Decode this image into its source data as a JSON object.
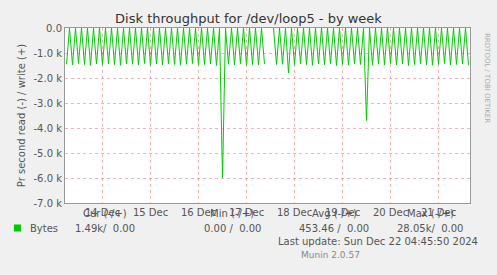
{
  "chart_data": {
    "type": "line",
    "title": "Disk throughput for /dev/loop5 - by week",
    "y_label": "Pr second read (-) / write (+)",
    "categories": [
      null,
      null,
      null,
      null,
      null,
      null,
      null,
      null,
      null,
      null,
      null,
      null,
      "14 Dec",
      null,
      null,
      null,
      null,
      null,
      null,
      null,
      null,
      null,
      null,
      null,
      null,
      null,
      null,
      null,
      "15 Dec",
      null,
      null,
      null,
      null,
      null,
      null,
      null,
      null,
      null,
      null,
      null,
      null,
      null,
      null,
      null,
      "16 Dec",
      null,
      null,
      null,
      null,
      null,
      null,
      null,
      null,
      null,
      null,
      null,
      null,
      null,
      null,
      null,
      "17 Dec",
      null,
      null,
      null,
      null,
      null,
      null,
      null,
      null,
      null,
      null,
      null,
      null,
      null,
      null,
      null,
      "18 Dec",
      null,
      null,
      null,
      null,
      null,
      null,
      null,
      null,
      null,
      null,
      null,
      null,
      null,
      null,
      null,
      "19 Dec",
      null,
      null,
      null,
      null,
      null,
      null,
      null,
      null,
      null,
      null,
      null,
      null,
      null,
      null,
      null,
      "20 Dec",
      null,
      null,
      null,
      null,
      null,
      null,
      null,
      null,
      null,
      null,
      null,
      null,
      null,
      null,
      null,
      "21 Dec",
      null,
      null,
      null,
      null,
      null,
      null,
      null,
      null,
      null,
      null
    ],
    "series": [
      {
        "name": "Bytes",
        "color": "#00cc00",
        "values": [
          -1450,
          0,
          -1480,
          0,
          -1420,
          0,
          -1460,
          0,
          -1500,
          0,
          -1440,
          0,
          -1470,
          0,
          -1430,
          0,
          -1460,
          0,
          -1490,
          0,
          -1430,
          0,
          -1450,
          0,
          -1480,
          0,
          -1420,
          0,
          -1500,
          0,
          -1440,
          0,
          -1470,
          0,
          -1430,
          0,
          -1460,
          0,
          -1490,
          0,
          -1450,
          0,
          -1420,
          0,
          -1480,
          0,
          -1460,
          0,
          -1440,
          0,
          -1500,
          0,
          -6000,
          0,
          -1450,
          0,
          -1470,
          0,
          -1430,
          0,
          -1490,
          0,
          -1460,
          0,
          -1480,
          0,
          -1440,
          null,
          null,
          0,
          -1460,
          0,
          -1450,
          0,
          -1800,
          0,
          -1470,
          0,
          -1430,
          0,
          -1460,
          0,
          -1490,
          0,
          -1440,
          0,
          -1470,
          0,
          -1420,
          0,
          -1500,
          0,
          -1450,
          0,
          -1480,
          0,
          -1430,
          0,
          -1460,
          0,
          -3700,
          0,
          -1490,
          0,
          -1450,
          0,
          -1470,
          0,
          -1420,
          0,
          -1480,
          0,
          -1440,
          0,
          -1500,
          0,
          -1460,
          0,
          -1430,
          0,
          -1470,
          0,
          -1490,
          0,
          -1450,
          0,
          -1420,
          0,
          -1480,
          0,
          -1460,
          0,
          -1440,
          0,
          -1490
        ]
      }
    ],
    "ylim": [
      -7000,
      0
    ],
    "yticks": [
      {
        "value": 0,
        "label": "0.0"
      },
      {
        "value": -1000,
        "label": "-1.0 k"
      },
      {
        "value": -2000,
        "label": "-2.0 k"
      },
      {
        "value": -3000,
        "label": "-3.0 k"
      },
      {
        "value": -4000,
        "label": "-4.0 k"
      },
      {
        "value": -5000,
        "label": "-5.0 k"
      },
      {
        "value": -6000,
        "label": "-6.0 k"
      },
      {
        "value": -7000,
        "label": "-7.0 k"
      }
    ],
    "grid": true,
    "stats": {
      "columns": [
        "Cur (-/+)",
        "Min (-/+)",
        "Avg (-/+)",
        "Max (-/+)"
      ],
      "rows": [
        {
          "name": "Bytes",
          "cells": [
            "1.49k/  0.00",
            "0.00 /  0.00",
            "453.46 /  0.00",
            "28.05k/  0.00"
          ]
        }
      ]
    },
    "footer": [
      "Last update: Sun Dec 22 04:45:50 2024",
      "Munin 2.0.57"
    ],
    "watermark": "RRDTOOL / TOBI OETIKER"
  }
}
